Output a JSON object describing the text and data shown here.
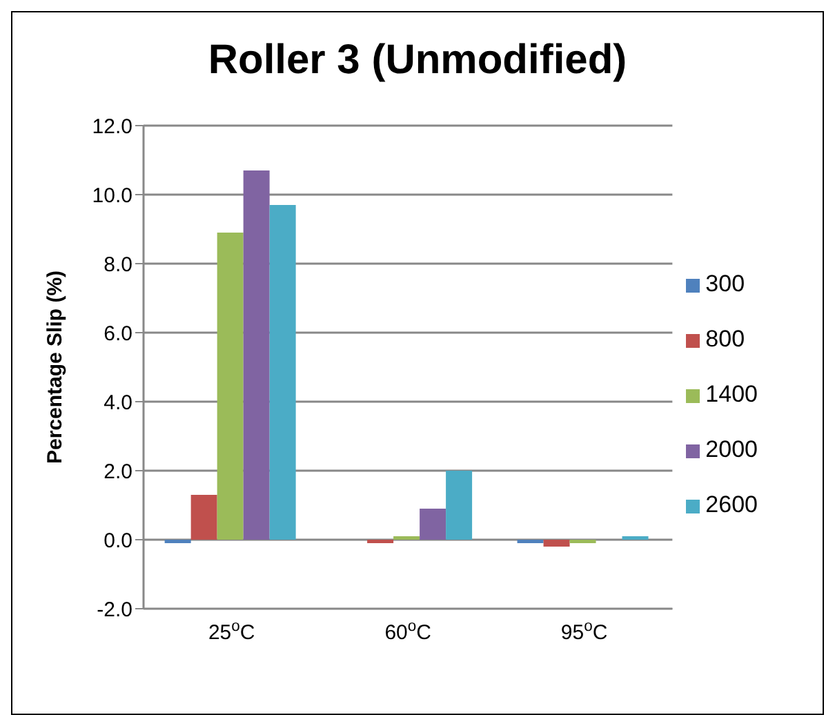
{
  "chart_data": {
    "type": "bar",
    "title": "Roller 3 (Unmodified)",
    "ylabel": "Percentage Slip  (%)",
    "categories": [
      "25$^{o}$C",
      "60$^{o}$C",
      "95$^{o}$C"
    ],
    "series": [
      {
        "name": "300",
        "color": "#4f81bd",
        "values": [
          -0.1,
          0,
          -0.1
        ]
      },
      {
        "name": "800",
        "color": "#c0504d",
        "values": [
          1.3,
          -0.1,
          -0.2
        ]
      },
      {
        "name": "1400",
        "color": "#9bbb59",
        "values": [
          8.9,
          0.1,
          -0.1
        ]
      },
      {
        "name": "2000",
        "color": "#8064a2",
        "values": [
          10.7,
          0.9,
          0
        ]
      },
      {
        "name": "2600",
        "color": "#4bacc6",
        "values": [
          9.7,
          2.0,
          0.1
        ]
      }
    ],
    "ylim": [
      -2,
      12
    ],
    "yticks": [
      {
        "value": -2,
        "label": "-2.0"
      },
      {
        "value": 0,
        "label": "0.0"
      },
      {
        "value": 2,
        "label": "2.0"
      },
      {
        "value": 4,
        "label": "4.0"
      },
      {
        "value": 6,
        "label": "6.0"
      },
      {
        "value": 8,
        "label": "8.0"
      },
      {
        "value": 10,
        "label": "10.0"
      },
      {
        "value": 12,
        "label": "12.0"
      }
    ],
    "grid": "y",
    "legend": "right"
  }
}
